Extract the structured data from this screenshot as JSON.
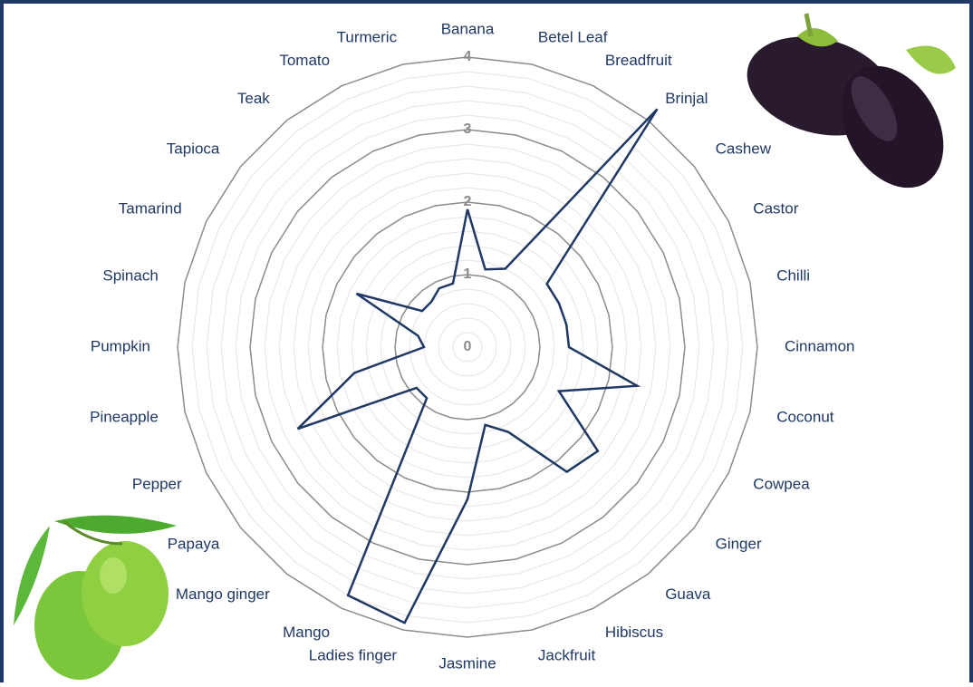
{
  "chart_data": {
    "type": "radar",
    "categories": [
      "Banana",
      "Betel Leaf",
      "Breadfruit",
      "Brinjal",
      "Cashew",
      "Castor",
      "Chilli",
      "Cinnamon",
      "Coconut",
      "Cowpea",
      "Ginger",
      "Guava",
      "Hibiscus",
      "Jackfruit",
      "Jasmine",
      "Ladies finger",
      "Mango",
      "Mango ginger",
      "Papaya",
      "Pepper",
      "Pineapple",
      "Pumpkin",
      "Spinach",
      "Tamarind",
      "Tapioca",
      "Teak",
      "Tomato",
      "Turmeric"
    ],
    "values": [
      1.9,
      1.1,
      1.2,
      4.2,
      1.4,
      1.4,
      1.4,
      1.4,
      2.4,
      1.4,
      2.3,
      2.2,
      1.3,
      1.1,
      2.1,
      3.9,
      3.8,
      0.9,
      0.9,
      2.6,
      1.6,
      0.6,
      0.7,
      1.7,
      0.8,
      0.8,
      0.9,
      0.9
    ],
    "color": "#1f3864",
    "ylim": [
      0,
      4
    ],
    "yticks": [
      0,
      1,
      2,
      3,
      4
    ],
    "grid": true
  }
}
